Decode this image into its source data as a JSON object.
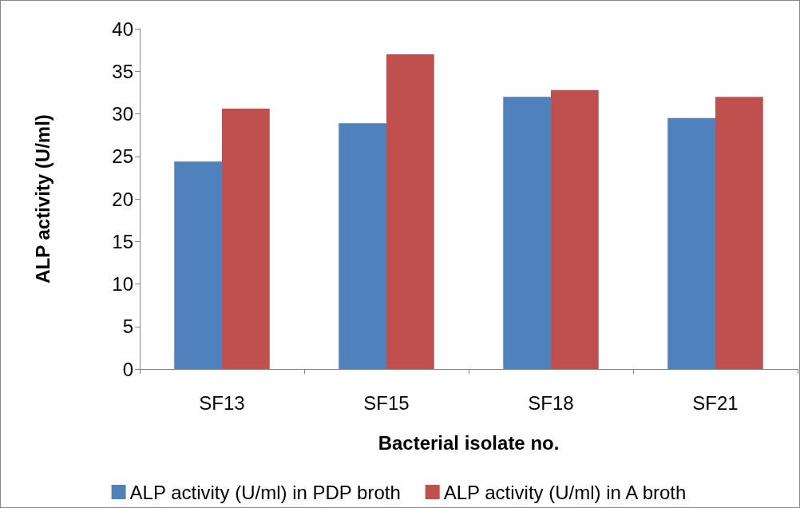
{
  "chart_data": {
    "type": "bar",
    "xlabel": "Bacterial isolate no.",
    "ylabel": "ALP activity (U/ml)",
    "categories": [
      "SF13",
      "SF15",
      "SF18",
      "SF21"
    ],
    "series": [
      {
        "name": "ALP activity (U/ml) in PDP broth",
        "color": "#4f81bd",
        "values": [
          24.4,
          28.9,
          32.0,
          29.5
        ]
      },
      {
        "name": "ALP activity (U/ml) in A broth",
        "color": "#c0504d",
        "values": [
          30.6,
          37.0,
          32.8,
          32.0
        ]
      }
    ],
    "ylim": [
      0,
      40
    ],
    "yticks": [
      0,
      5,
      10,
      15,
      20,
      25,
      30,
      35,
      40
    ],
    "grid": false,
    "legend": "bottom"
  }
}
